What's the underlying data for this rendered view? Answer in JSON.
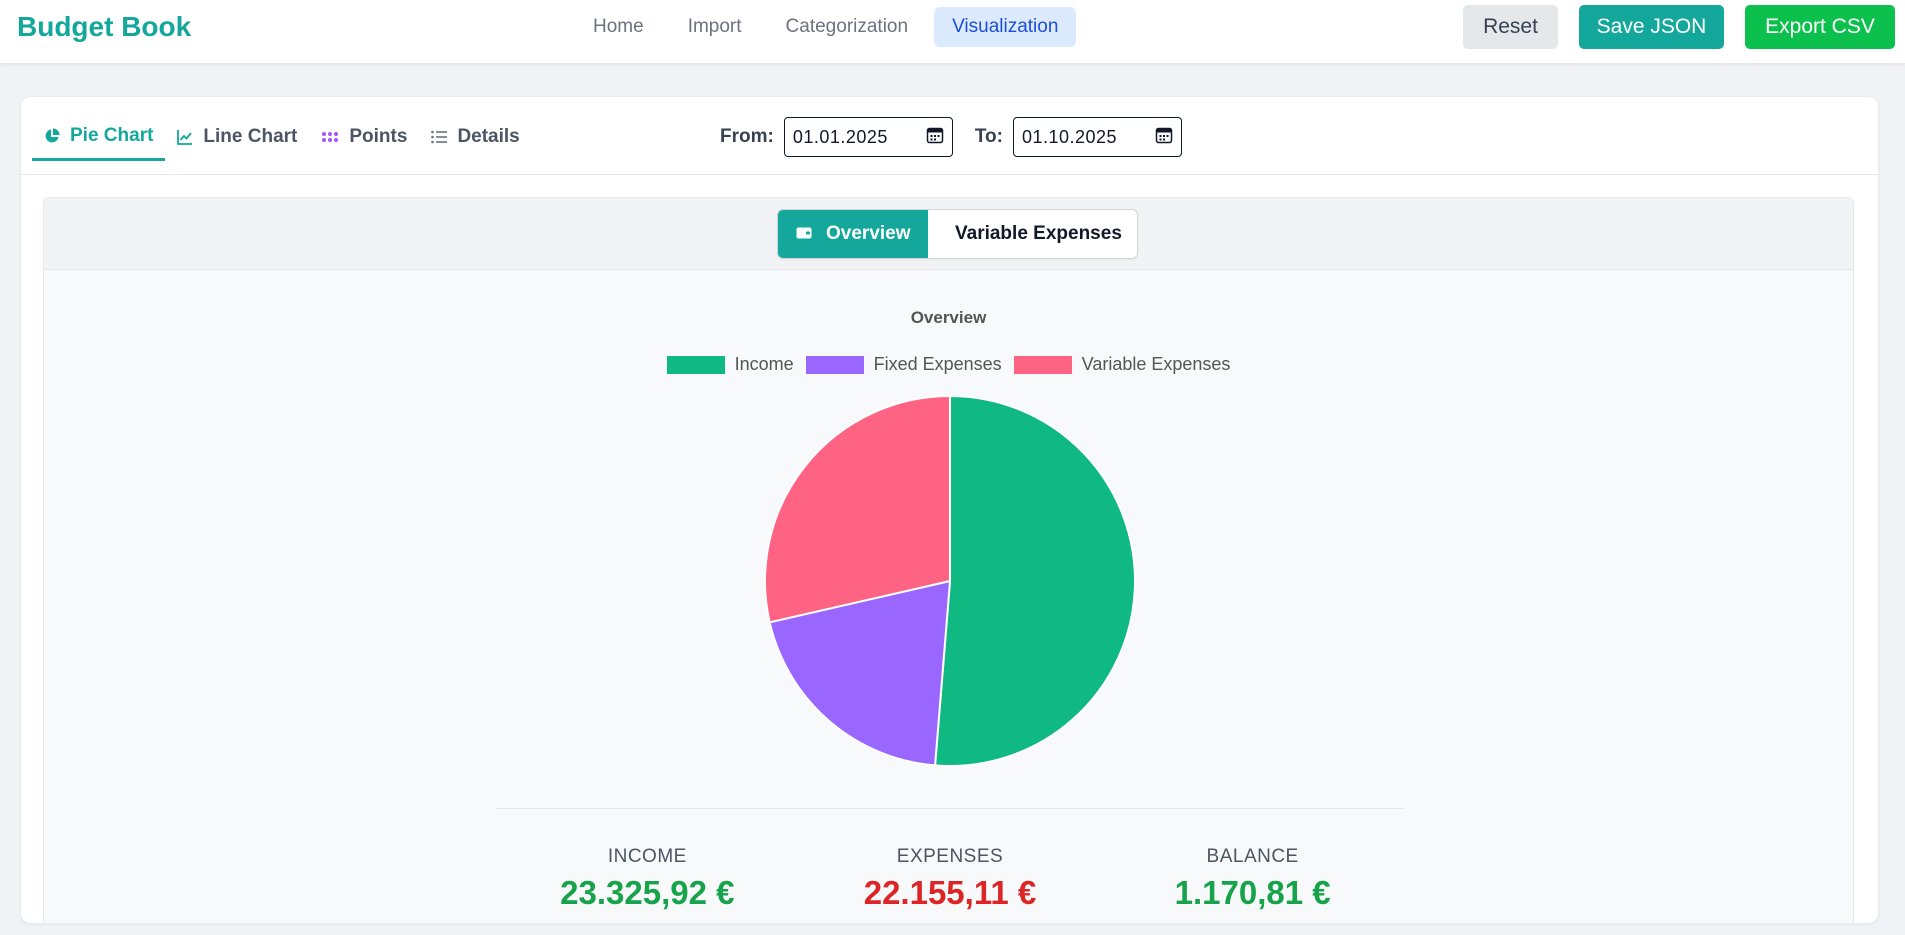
{
  "app": {
    "title": "Budget Book"
  },
  "nav": [
    {
      "label": "Home",
      "active": false
    },
    {
      "label": "Import",
      "active": false
    },
    {
      "label": "Categorization",
      "active": false
    },
    {
      "label": "Visualization",
      "active": true
    }
  ],
  "actions": {
    "reset": "Reset",
    "save": "Save JSON",
    "export": "Export CSV"
  },
  "tabs": [
    {
      "label": "Pie Chart",
      "icon": "pie-chart-icon",
      "active": true
    },
    {
      "label": "Line Chart",
      "icon": "line-chart-icon",
      "active": false
    },
    {
      "label": "Points",
      "icon": "points-icon",
      "active": false
    },
    {
      "label": "Details",
      "icon": "list-icon",
      "active": false
    }
  ],
  "date_range": {
    "from_label": "From:",
    "from_value": "01.01.2025",
    "to_label": "To:",
    "to_value": "01.10.2025"
  },
  "view_toggle": {
    "overview": "Overview",
    "variable": "Variable Expenses"
  },
  "chart_data": {
    "type": "pie",
    "title": "Overview",
    "legend_position": "top",
    "categories": [
      "Income",
      "Fixed Expenses",
      "Variable Expenses"
    ],
    "values": [
      23325.92,
      9155.11,
      13000.0
    ],
    "colors": [
      "#10b981",
      "#9966ff",
      "#ff6384"
    ]
  },
  "summary": {
    "income_label": "INCOME",
    "income_value": "23.325,92 €",
    "expenses_label": "EXPENSES",
    "expenses_value": "22.155,11 €",
    "balance_label": "BALANCE",
    "balance_value": "1.170,81 €"
  },
  "colors": {
    "accent": "#14a79c",
    "positive": "#16a34a",
    "negative": "#dc2626"
  }
}
